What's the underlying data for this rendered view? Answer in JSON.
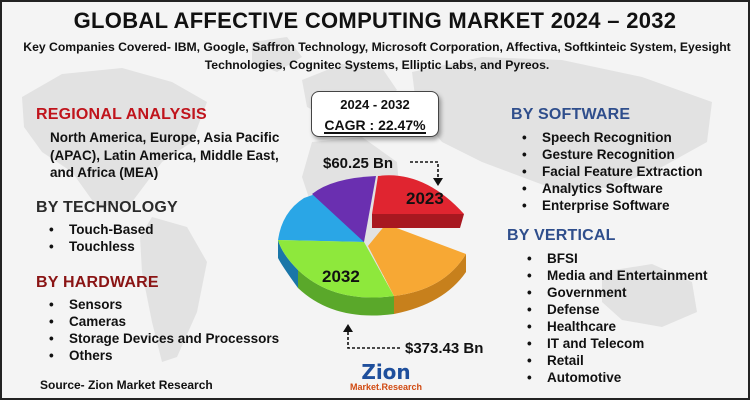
{
  "title": "GLOBAL AFFECTIVE COMPUTING MARKET 2024 – 2032",
  "companies": "Key Companies Covered- IBM, Google, Saffron Technology, Microsoft Corporation, Affectiva, Softkinteic System, Eyesight Technologies, Cognitec Systems, Elliptic Labs, and Pyreos.",
  "regional": {
    "heading": "REGIONAL ANALYSIS",
    "text": "North America, Europe, Asia Pacific (APAC), Latin America, Middle East, and Africa (MEA)"
  },
  "technology": {
    "heading": "BY TECHNOLOGY",
    "items": [
      "Touch-Based",
      "Touchless"
    ]
  },
  "hardware": {
    "heading": "BY HARDWARE",
    "items": [
      "Sensors",
      "Cameras",
      "Storage Devices and Processors",
      "Others"
    ]
  },
  "software": {
    "heading": "BY SOFTWARE",
    "items": [
      "Speech Recognition",
      "Gesture Recognition",
      "Facial Feature Extraction",
      "Analytics Software",
      "Enterprise Software"
    ]
  },
  "vertical": {
    "heading": "BY VERTICAL",
    "items": [
      "BFSI",
      "Media and Entertainment",
      "Government",
      "Defense",
      "Healthcare",
      "IT and Telecom",
      "Retail",
      "Automotive"
    ]
  },
  "cagr": {
    "period": "2024 - 2032",
    "label": "CAGR : 22.47%"
  },
  "market_value": {
    "start_value": "$60.25 Bn",
    "start_year": "2023",
    "end_value": "$373.43 Bn",
    "end_year": "2032"
  },
  "pie_colors": {
    "red": "#e02530",
    "orange": "#f7a834",
    "green": "#8ee83c",
    "blue": "#2aa6e6",
    "purple": "#6a2fb0"
  },
  "source": "Source- Zion Market Research",
  "logo": {
    "name": "Zion",
    "tagline": "Market.Research"
  }
}
